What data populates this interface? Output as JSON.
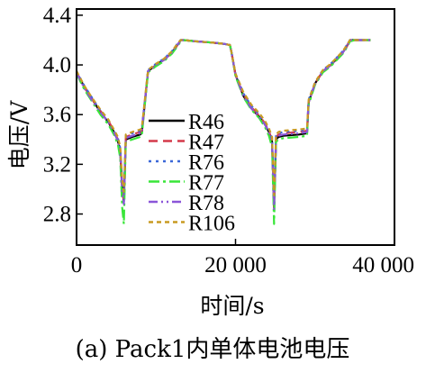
{
  "caption": "(a) Pack1内单体电池电压",
  "chart_data": {
    "type": "line",
    "xlabel": "时间/s",
    "ylabel": "电压/V",
    "xlim": [
      0,
      40000
    ],
    "ylim": [
      2.55,
      4.45
    ],
    "xticks": [
      0,
      20000,
      40000
    ],
    "xtick_labels": [
      "0",
      "20 000",
      "40 000"
    ],
    "yticks": [
      2.8,
      3.2,
      3.6,
      4.0,
      4.4
    ],
    "ytick_labels": [
      "2.8",
      "3.2",
      "3.6",
      "4.0",
      "4.4"
    ],
    "grid": false,
    "legend_position": "center",
    "series": [
      {
        "name": "R46",
        "color": "#000000",
        "dash": "solid",
        "x": [
          0,
          1000,
          2000,
          3000,
          4000,
          4700,
          5200,
          5500,
          5750,
          5950,
          6200,
          7000,
          8000,
          8200,
          9000,
          10000,
          11000,
          12000,
          12800,
          13100,
          13500,
          15000,
          17000,
          18500,
          19300,
          19500,
          20000,
          21000,
          22000,
          23000,
          23700,
          24200,
          24600,
          24850,
          25100,
          25400,
          26000,
          28000,
          29000,
          29200,
          30000,
          31000,
          32000,
          33500,
          34000,
          34400,
          35000,
          36000,
          37000
        ],
        "y": [
          3.94,
          3.82,
          3.72,
          3.62,
          3.54,
          3.46,
          3.39,
          3.3,
          3.0,
          2.9,
          3.4,
          3.42,
          3.44,
          3.45,
          3.95,
          4.0,
          4.04,
          4.1,
          4.17,
          4.2,
          4.2,
          4.19,
          4.18,
          4.17,
          4.16,
          4.1,
          3.92,
          3.75,
          3.65,
          3.58,
          3.52,
          3.46,
          3.38,
          2.85,
          3.4,
          3.42,
          3.43,
          3.44,
          3.45,
          3.7,
          3.85,
          3.95,
          4.0,
          4.1,
          4.15,
          4.2,
          4.2,
          4.2,
          4.2
        ]
      },
      {
        "name": "R47",
        "color": "#d43a4a",
        "dash": "10,6",
        "x": [
          0,
          1000,
          2000,
          3000,
          4000,
          4700,
          5200,
          5500,
          5750,
          5950,
          6200,
          7000,
          8000,
          8200,
          9000,
          10000,
          11000,
          12000,
          12800,
          13100,
          13500,
          15000,
          17000,
          18500,
          19300,
          19500,
          20000,
          21000,
          22000,
          23000,
          23700,
          24200,
          24600,
          24850,
          25100,
          25400,
          26000,
          28000,
          29000,
          29200,
          30000,
          31000,
          32000,
          33500,
          34000,
          34400,
          35000,
          36000,
          37000
        ],
        "y": [
          3.94,
          3.82,
          3.72,
          3.63,
          3.55,
          3.47,
          3.4,
          3.32,
          3.0,
          2.9,
          3.42,
          3.44,
          3.46,
          3.47,
          3.95,
          4.0,
          4.04,
          4.1,
          4.17,
          4.2,
          4.2,
          4.19,
          4.18,
          4.17,
          4.16,
          4.1,
          3.92,
          3.76,
          3.66,
          3.59,
          3.53,
          3.47,
          3.39,
          2.85,
          3.42,
          3.44,
          3.45,
          3.46,
          3.47,
          3.7,
          3.85,
          3.95,
          4.0,
          4.1,
          4.15,
          4.2,
          4.2,
          4.2,
          4.2
        ]
      },
      {
        "name": "R76",
        "color": "#3b68d8",
        "dash": "3,5",
        "x": [
          0,
          1000,
          2000,
          3000,
          4000,
          4700,
          5200,
          5500,
          5750,
          5950,
          6200,
          7000,
          8000,
          8200,
          9000,
          10000,
          11000,
          12000,
          12800,
          13100,
          13500,
          15000,
          17000,
          18500,
          19300,
          19500,
          20000,
          21000,
          22000,
          23000,
          23700,
          24200,
          24600,
          24850,
          25100,
          25400,
          26000,
          28000,
          29000,
          29200,
          30000,
          31000,
          32000,
          33500,
          34000,
          34400,
          35000,
          36000,
          37000
        ],
        "y": [
          3.95,
          3.83,
          3.73,
          3.63,
          3.55,
          3.47,
          3.41,
          3.33,
          3.05,
          2.95,
          3.43,
          3.45,
          3.47,
          3.48,
          3.96,
          4.01,
          4.05,
          4.11,
          4.18,
          4.2,
          4.2,
          4.19,
          4.18,
          4.17,
          4.16,
          4.1,
          3.93,
          3.77,
          3.67,
          3.6,
          3.54,
          3.48,
          3.4,
          2.9,
          3.43,
          3.45,
          3.46,
          3.47,
          3.48,
          3.72,
          3.86,
          3.96,
          4.01,
          4.11,
          4.16,
          4.2,
          4.2,
          4.2,
          4.2
        ]
      },
      {
        "name": "R77",
        "color": "#39e639",
        "dash": "12,4,3,4",
        "x": [
          0,
          1000,
          2000,
          3000,
          4000,
          4700,
          5200,
          5500,
          5750,
          5950,
          6200,
          7000,
          8000,
          8200,
          9000,
          10000,
          11000,
          12000,
          12800,
          13100,
          13500,
          15000,
          17000,
          18500,
          19300,
          19500,
          20000,
          21000,
          22000,
          23000,
          23700,
          24200,
          24600,
          24850,
          25100,
          25400,
          26000,
          28000,
          29000,
          29200,
          30000,
          31000,
          32000,
          33500,
          34000,
          34400,
          35000,
          36000,
          37000
        ],
        "y": [
          3.93,
          3.8,
          3.7,
          3.6,
          3.52,
          3.44,
          3.36,
          3.25,
          2.85,
          2.72,
          3.38,
          3.4,
          3.42,
          3.43,
          3.94,
          3.99,
          4.03,
          4.09,
          4.16,
          4.19,
          4.2,
          4.19,
          4.18,
          4.17,
          4.16,
          4.1,
          3.91,
          3.74,
          3.64,
          3.57,
          3.5,
          3.43,
          3.34,
          2.72,
          3.38,
          3.4,
          3.41,
          3.42,
          3.43,
          3.68,
          3.84,
          3.94,
          3.99,
          4.09,
          4.14,
          4.19,
          4.2,
          4.2,
          4.2
        ]
      },
      {
        "name": "R78",
        "color": "#8a55d8",
        "dash": "10,4,2,4,2,4",
        "x": [
          0,
          1000,
          2000,
          3000,
          4000,
          4700,
          5200,
          5500,
          5750,
          5950,
          6200,
          7000,
          8000,
          8200,
          9000,
          10000,
          11000,
          12000,
          12800,
          13100,
          13500,
          15000,
          17000,
          18500,
          19300,
          19500,
          20000,
          21000,
          22000,
          23000,
          23700,
          24200,
          24600,
          24850,
          25100,
          25400,
          26000,
          28000,
          29000,
          29200,
          30000,
          31000,
          32000,
          33500,
          34000,
          34400,
          35000,
          36000,
          37000
        ],
        "y": [
          3.94,
          3.81,
          3.71,
          3.62,
          3.54,
          3.46,
          3.39,
          3.31,
          2.98,
          2.88,
          3.41,
          3.43,
          3.45,
          3.46,
          3.95,
          4.0,
          4.04,
          4.1,
          4.17,
          4.2,
          4.2,
          4.19,
          4.18,
          4.17,
          4.16,
          4.1,
          3.92,
          3.75,
          3.65,
          3.58,
          3.52,
          3.46,
          3.38,
          2.84,
          3.41,
          3.43,
          3.44,
          3.45,
          3.46,
          3.7,
          3.85,
          3.95,
          4.0,
          4.1,
          4.15,
          4.2,
          4.2,
          4.2,
          4.2
        ]
      },
      {
        "name": "R106",
        "color": "#c89a22",
        "dash": "5,4",
        "x": [
          0,
          1000,
          2000,
          3000,
          4000,
          4700,
          5200,
          5500,
          5750,
          5950,
          6200,
          7000,
          8000,
          8200,
          9000,
          10000,
          11000,
          12000,
          12800,
          13100,
          13500,
          15000,
          17000,
          18500,
          19300,
          19500,
          20000,
          21000,
          22000,
          23000,
          23700,
          24200,
          24600,
          24850,
          25100,
          25400,
          26000,
          28000,
          29000,
          29200,
          30000,
          31000,
          32000,
          33500,
          34000,
          34400,
          35000,
          36000,
          37000
        ],
        "y": [
          3.95,
          3.83,
          3.73,
          3.64,
          3.56,
          3.48,
          3.42,
          3.34,
          3.08,
          2.98,
          3.44,
          3.46,
          3.48,
          3.49,
          3.96,
          4.01,
          4.05,
          4.11,
          4.18,
          4.2,
          4.2,
          4.19,
          4.18,
          4.17,
          4.16,
          4.1,
          3.93,
          3.78,
          3.68,
          3.61,
          3.55,
          3.49,
          3.42,
          2.95,
          3.44,
          3.46,
          3.47,
          3.48,
          3.49,
          3.72,
          3.86,
          3.96,
          4.01,
          4.11,
          4.16,
          4.2,
          4.2,
          4.2,
          4.2
        ]
      }
    ]
  }
}
